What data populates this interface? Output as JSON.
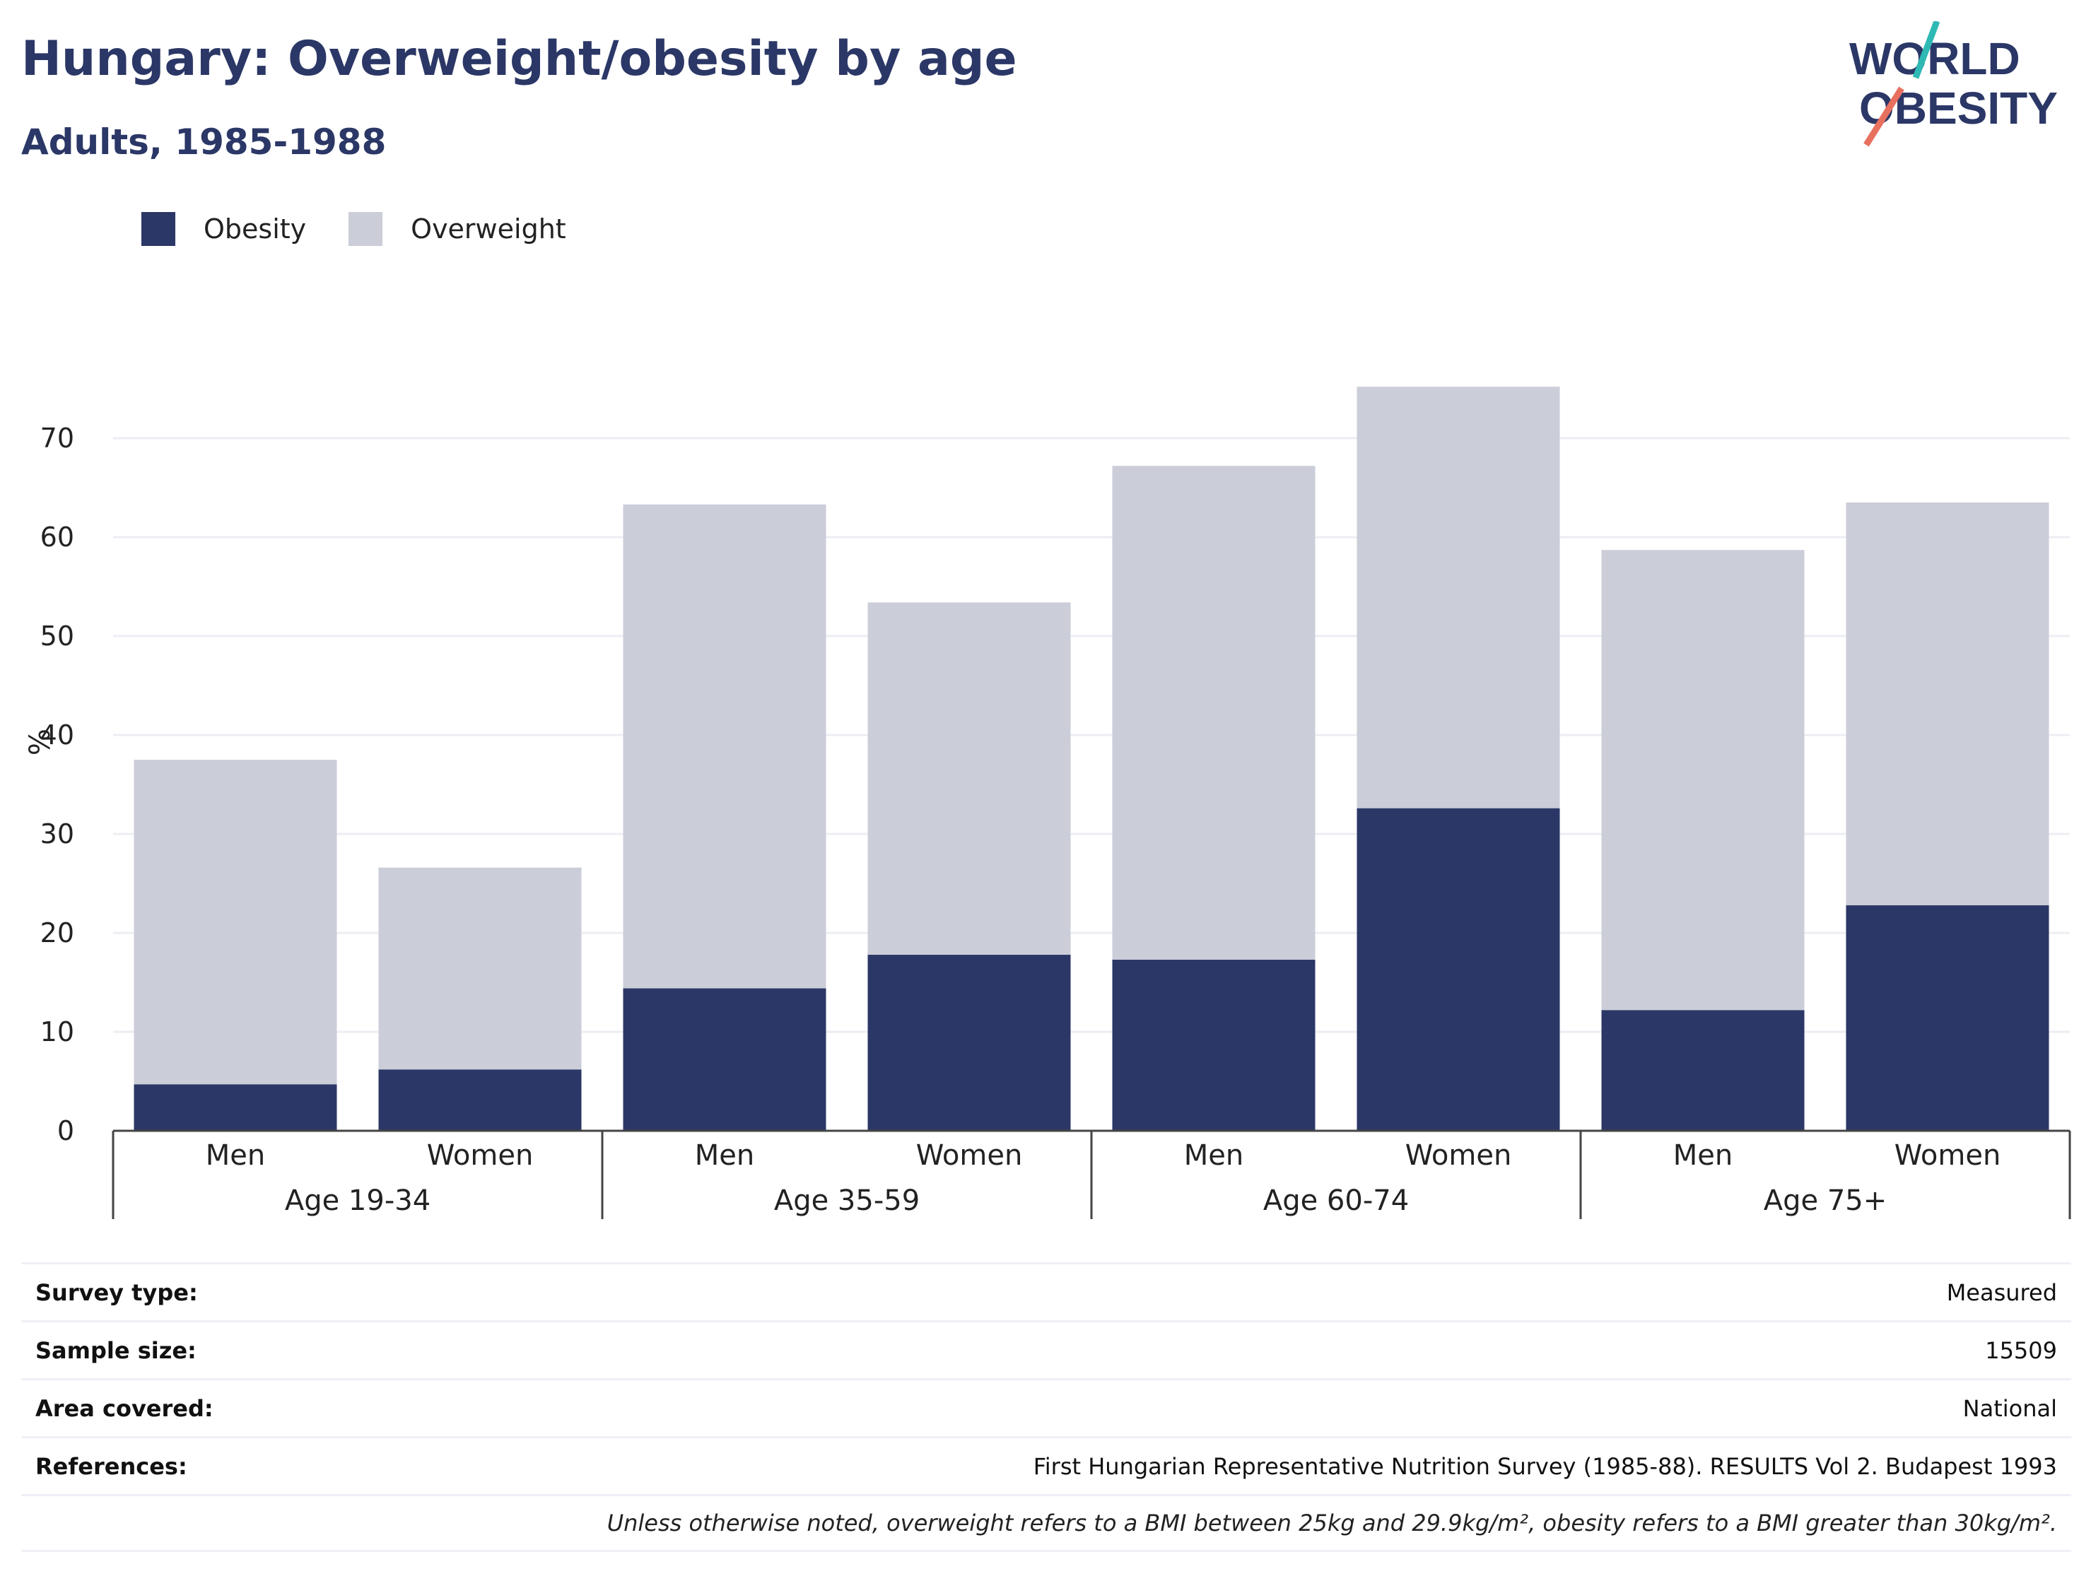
{
  "header": {
    "title": "Hungary: Overweight/obesity by age",
    "subtitle": "Adults, 1985-1988"
  },
  "logo": {
    "line1": "WORLD",
    "line2": "OBESITY"
  },
  "colors": {
    "obesity": "#2b3766",
    "overweight": "#cbcdd9",
    "title": "#2b3766",
    "logo_slash_top": "#2fb9b4",
    "logo_slash_bottom": "#e8705f"
  },
  "chart_data": {
    "type": "bar",
    "stacked": true,
    "ylabel": "%",
    "ylim": [
      0,
      75
    ],
    "yticks": [
      0,
      10,
      20,
      30,
      40,
      50,
      60,
      70
    ],
    "grid": true,
    "legend_position": "top-left",
    "groups": [
      "Age 19-34",
      "Age 35-59",
      "Age 60-74",
      "Age 75+"
    ],
    "categories": [
      "Men",
      "Women",
      "Men",
      "Women",
      "Men",
      "Women",
      "Men",
      "Women"
    ],
    "series": [
      {
        "name": "Obesity",
        "values": [
          4.7,
          6.2,
          14.4,
          17.8,
          17.3,
          32.6,
          12.2,
          22.8
        ]
      },
      {
        "name": "Overweight",
        "values": [
          32.8,
          20.4,
          48.9,
          35.6,
          49.9,
          42.6,
          46.5,
          40.7
        ]
      }
    ]
  },
  "info": {
    "rows": [
      {
        "label": "Survey type:",
        "value": "Measured"
      },
      {
        "label": "Sample size:",
        "value": "15509"
      },
      {
        "label": "Area covered:",
        "value": "National"
      },
      {
        "label": "References:",
        "value": "First Hungarian Representative Nutrition Survey (1985-88). RESULTS Vol 2. Budapest 1993"
      }
    ],
    "note": "Unless otherwise noted, overweight refers to a BMI between 25kg and 29.9kg/m², obesity refers to a BMI greater than 30kg/m²."
  }
}
